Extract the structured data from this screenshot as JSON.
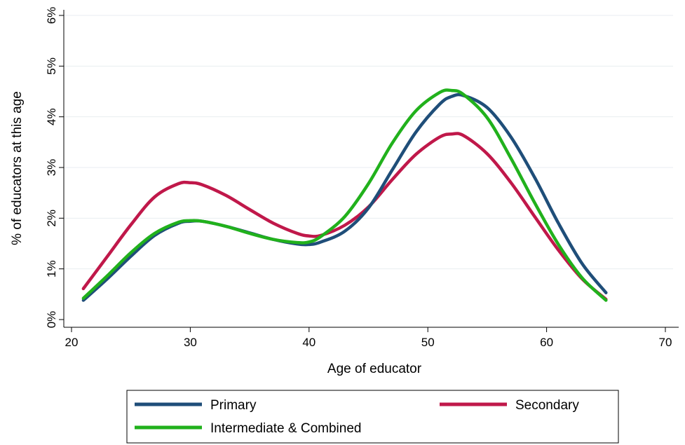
{
  "chart_data": {
    "type": "line",
    "title": "",
    "xlabel": "Age of educator",
    "ylabel": "% of educators at this age",
    "xlim": [
      20,
      70
    ],
    "ylim": [
      0,
      6
    ],
    "x_ticks": [
      20,
      30,
      40,
      50,
      60,
      70
    ],
    "x_tick_labels": [
      "20",
      "30",
      "40",
      "50",
      "60",
      "70"
    ],
    "y_ticks": [
      0,
      1,
      2,
      3,
      4,
      5,
      6
    ],
    "y_tick_labels": [
      "0%",
      "1%",
      "2%",
      "3%",
      "4%",
      "5%",
      "6%"
    ],
    "grid": "horizontal",
    "legend_position": "bottom",
    "x": [
      21,
      23,
      25,
      27,
      29,
      30,
      31,
      33,
      35,
      37,
      39,
      40,
      41,
      43,
      45,
      47,
      49,
      51,
      52,
      53,
      55,
      57,
      59,
      61,
      63,
      65
    ],
    "series": [
      {
        "name": "Primary",
        "color": "#1f4e79",
        "values": [
          0.38,
          0.8,
          1.25,
          1.66,
          1.9,
          1.94,
          1.94,
          1.84,
          1.71,
          1.58,
          1.49,
          1.48,
          1.53,
          1.74,
          2.2,
          2.95,
          3.7,
          4.25,
          4.4,
          4.42,
          4.18,
          3.6,
          2.8,
          1.9,
          1.1,
          0.53
        ]
      },
      {
        "name": "Secondary",
        "color": "#c0184a",
        "values": [
          0.61,
          1.24,
          1.87,
          2.42,
          2.68,
          2.7,
          2.66,
          2.45,
          2.17,
          1.9,
          1.7,
          1.65,
          1.66,
          1.86,
          2.22,
          2.76,
          3.26,
          3.6,
          3.66,
          3.63,
          3.27,
          2.7,
          2.03,
          1.37,
          0.8,
          0.4
        ]
      },
      {
        "name": "Intermediate & Combined",
        "color": "#21b11c",
        "values": [
          0.42,
          0.86,
          1.32,
          1.7,
          1.92,
          1.95,
          1.94,
          1.84,
          1.7,
          1.58,
          1.52,
          1.53,
          1.64,
          2.03,
          2.68,
          3.48,
          4.12,
          4.48,
          4.52,
          4.44,
          3.98,
          3.18,
          2.3,
          1.48,
          0.82,
          0.38
        ]
      }
    ]
  },
  "legend": {
    "items": [
      "Primary",
      "Secondary",
      "Intermediate & Combined"
    ]
  }
}
